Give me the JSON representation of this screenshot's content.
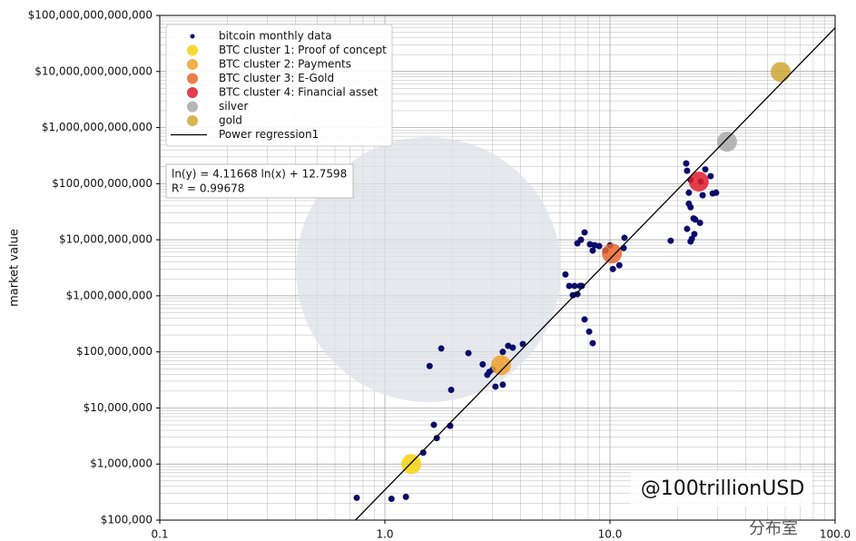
{
  "chart_data": {
    "type": "scatter",
    "xlog": true,
    "ylog": true,
    "grid": true,
    "legend": "upper left",
    "ylabel": "market value",
    "xlim": [
      0.1,
      100
    ],
    "ylim": [
      100000,
      100000000000000
    ],
    "xticks": [
      0.1,
      {
        "value": 1,
        "label": "1.0"
      },
      {
        "value": 10,
        "label": "10.0"
      },
      {
        "value": 100,
        "label": "100.0"
      }
    ],
    "yticks": [
      {
        "value": 100000,
        "label": "$100,000"
      },
      {
        "value": 1000000,
        "label": "$1,000,000"
      },
      {
        "value": 10000000,
        "label": "$10,000,000"
      },
      {
        "value": 100000000,
        "label": "$100,000,000"
      },
      {
        "value": 1000000000,
        "label": "$1,000,000,000"
      },
      {
        "value": 10000000000,
        "label": "$10,000,000,000"
      },
      {
        "value": 100000000000,
        "label": "$100,000,000,000"
      },
      {
        "value": 1000000000000,
        "label": "$1,000,000,000,000"
      },
      {
        "value": 10000000000000,
        "label": "$10,000,000,000,000"
      },
      {
        "value": 100000000000000,
        "label": "$100,000,000,000,000"
      }
    ],
    "series": [
      {
        "name": "bitcoin monthly data",
        "color": "#0b0b6b",
        "marker_size": 3.5,
        "x": [
          0.75,
          1.07,
          1.24,
          1.48,
          1.7,
          1.65,
          1.95,
          1.58,
          1.78,
          1.97,
          2.35,
          2.72,
          2.91,
          2.85,
          3.02,
          3.1,
          3.34,
          3.34,
          3.53,
          3.7,
          4.1,
          6.34,
          6.59,
          6.96,
          7.16,
          7.36,
          6.84,
          7.5,
          7.71,
          8.08,
          8.38,
          7.16,
          7.43,
          7.71,
          8.15,
          8.38,
          8.54,
          8.95,
          10.0,
          9.55,
          10.3,
          11.0,
          11.6,
          11.5,
          18.6,
          21.8,
          22.0,
          22.8,
          22.4,
          22.4,
          22.8,
          23.5,
          23.7,
          23.1,
          23.9,
          25.1,
          22.0,
          25.3,
          25.8,
          26.5,
          28.0,
          28.6,
          29.6,
          22.8
        ],
        "values": [
          250000,
          240000,
          260000,
          1600000,
          2900000,
          5000000,
          4800000,
          56000000,
          115000000,
          21000000,
          95000000,
          60000000,
          44000000,
          39000000,
          49000000,
          24000000,
          26000000,
          100000000,
          128000000,
          119000000,
          138000000,
          2400000000,
          1500000000,
          1500000000,
          1070000000,
          1500000000,
          1030000000,
          1500000000,
          380000000,
          230000000,
          143000000,
          8600000000,
          10000000000,
          13500000000,
          8300000000,
          6400000000,
          8000000000,
          7700000000,
          7900000000,
          6400000000,
          3000000000,
          3500000000,
          10800000000,
          7100000000,
          9600000000,
          230000000000,
          170000000000,
          117000000000,
          69000000000,
          44000000000,
          38000000000,
          24000000000,
          12600000000,
          10400000000,
          23000000000,
          20000000000,
          15600000000,
          109000000000,
          62000000000,
          180000000000,
          136000000000,
          67000000000,
          69000000000,
          9300000000
        ]
      },
      {
        "name": "BTC cluster 1: Proof of concept",
        "color": "#f5d20f",
        "marker_size": 11,
        "x": [
          1.31
        ],
        "values": [
          1000000
        ]
      },
      {
        "name": "BTC cluster 2: Payments",
        "color": "#eea12c",
        "marker_size": 11,
        "x": [
          3.28
        ],
        "values": [
          58000000
        ]
      },
      {
        "name": "BTC cluster 3: E-Gold",
        "color": "#e8672e",
        "marker_size": 11,
        "x": [
          10.2
        ],
        "values": [
          5700000000
        ]
      },
      {
        "name": "BTC cluster 4: Financial asset",
        "color": "#e01c2c",
        "marker_size": 11,
        "x": [
          24.8
        ],
        "values": [
          109000000000
        ]
      },
      {
        "name": "silver",
        "color": "#a8a8a8",
        "marker_size": 11,
        "x": [
          33.1
        ],
        "values": [
          560000000000
        ]
      },
      {
        "name": "gold",
        "color": "#cfa733",
        "marker_size": 11,
        "x": [
          57.3
        ],
        "values": [
          9800000000000
        ]
      },
      {
        "name": "Power regression1",
        "color": "#000000",
        "style": "line",
        "x": [
          0.74,
          100
        ],
        "values": [
          100000,
          60000000000000
        ]
      }
    ],
    "annotation": [
      "ln(y) = 4.11668 ln(x) + 12.7598",
      "R² = 0.99678"
    ],
    "watermark": "@100trillionUSD",
    "corner_mark": "分布室"
  }
}
